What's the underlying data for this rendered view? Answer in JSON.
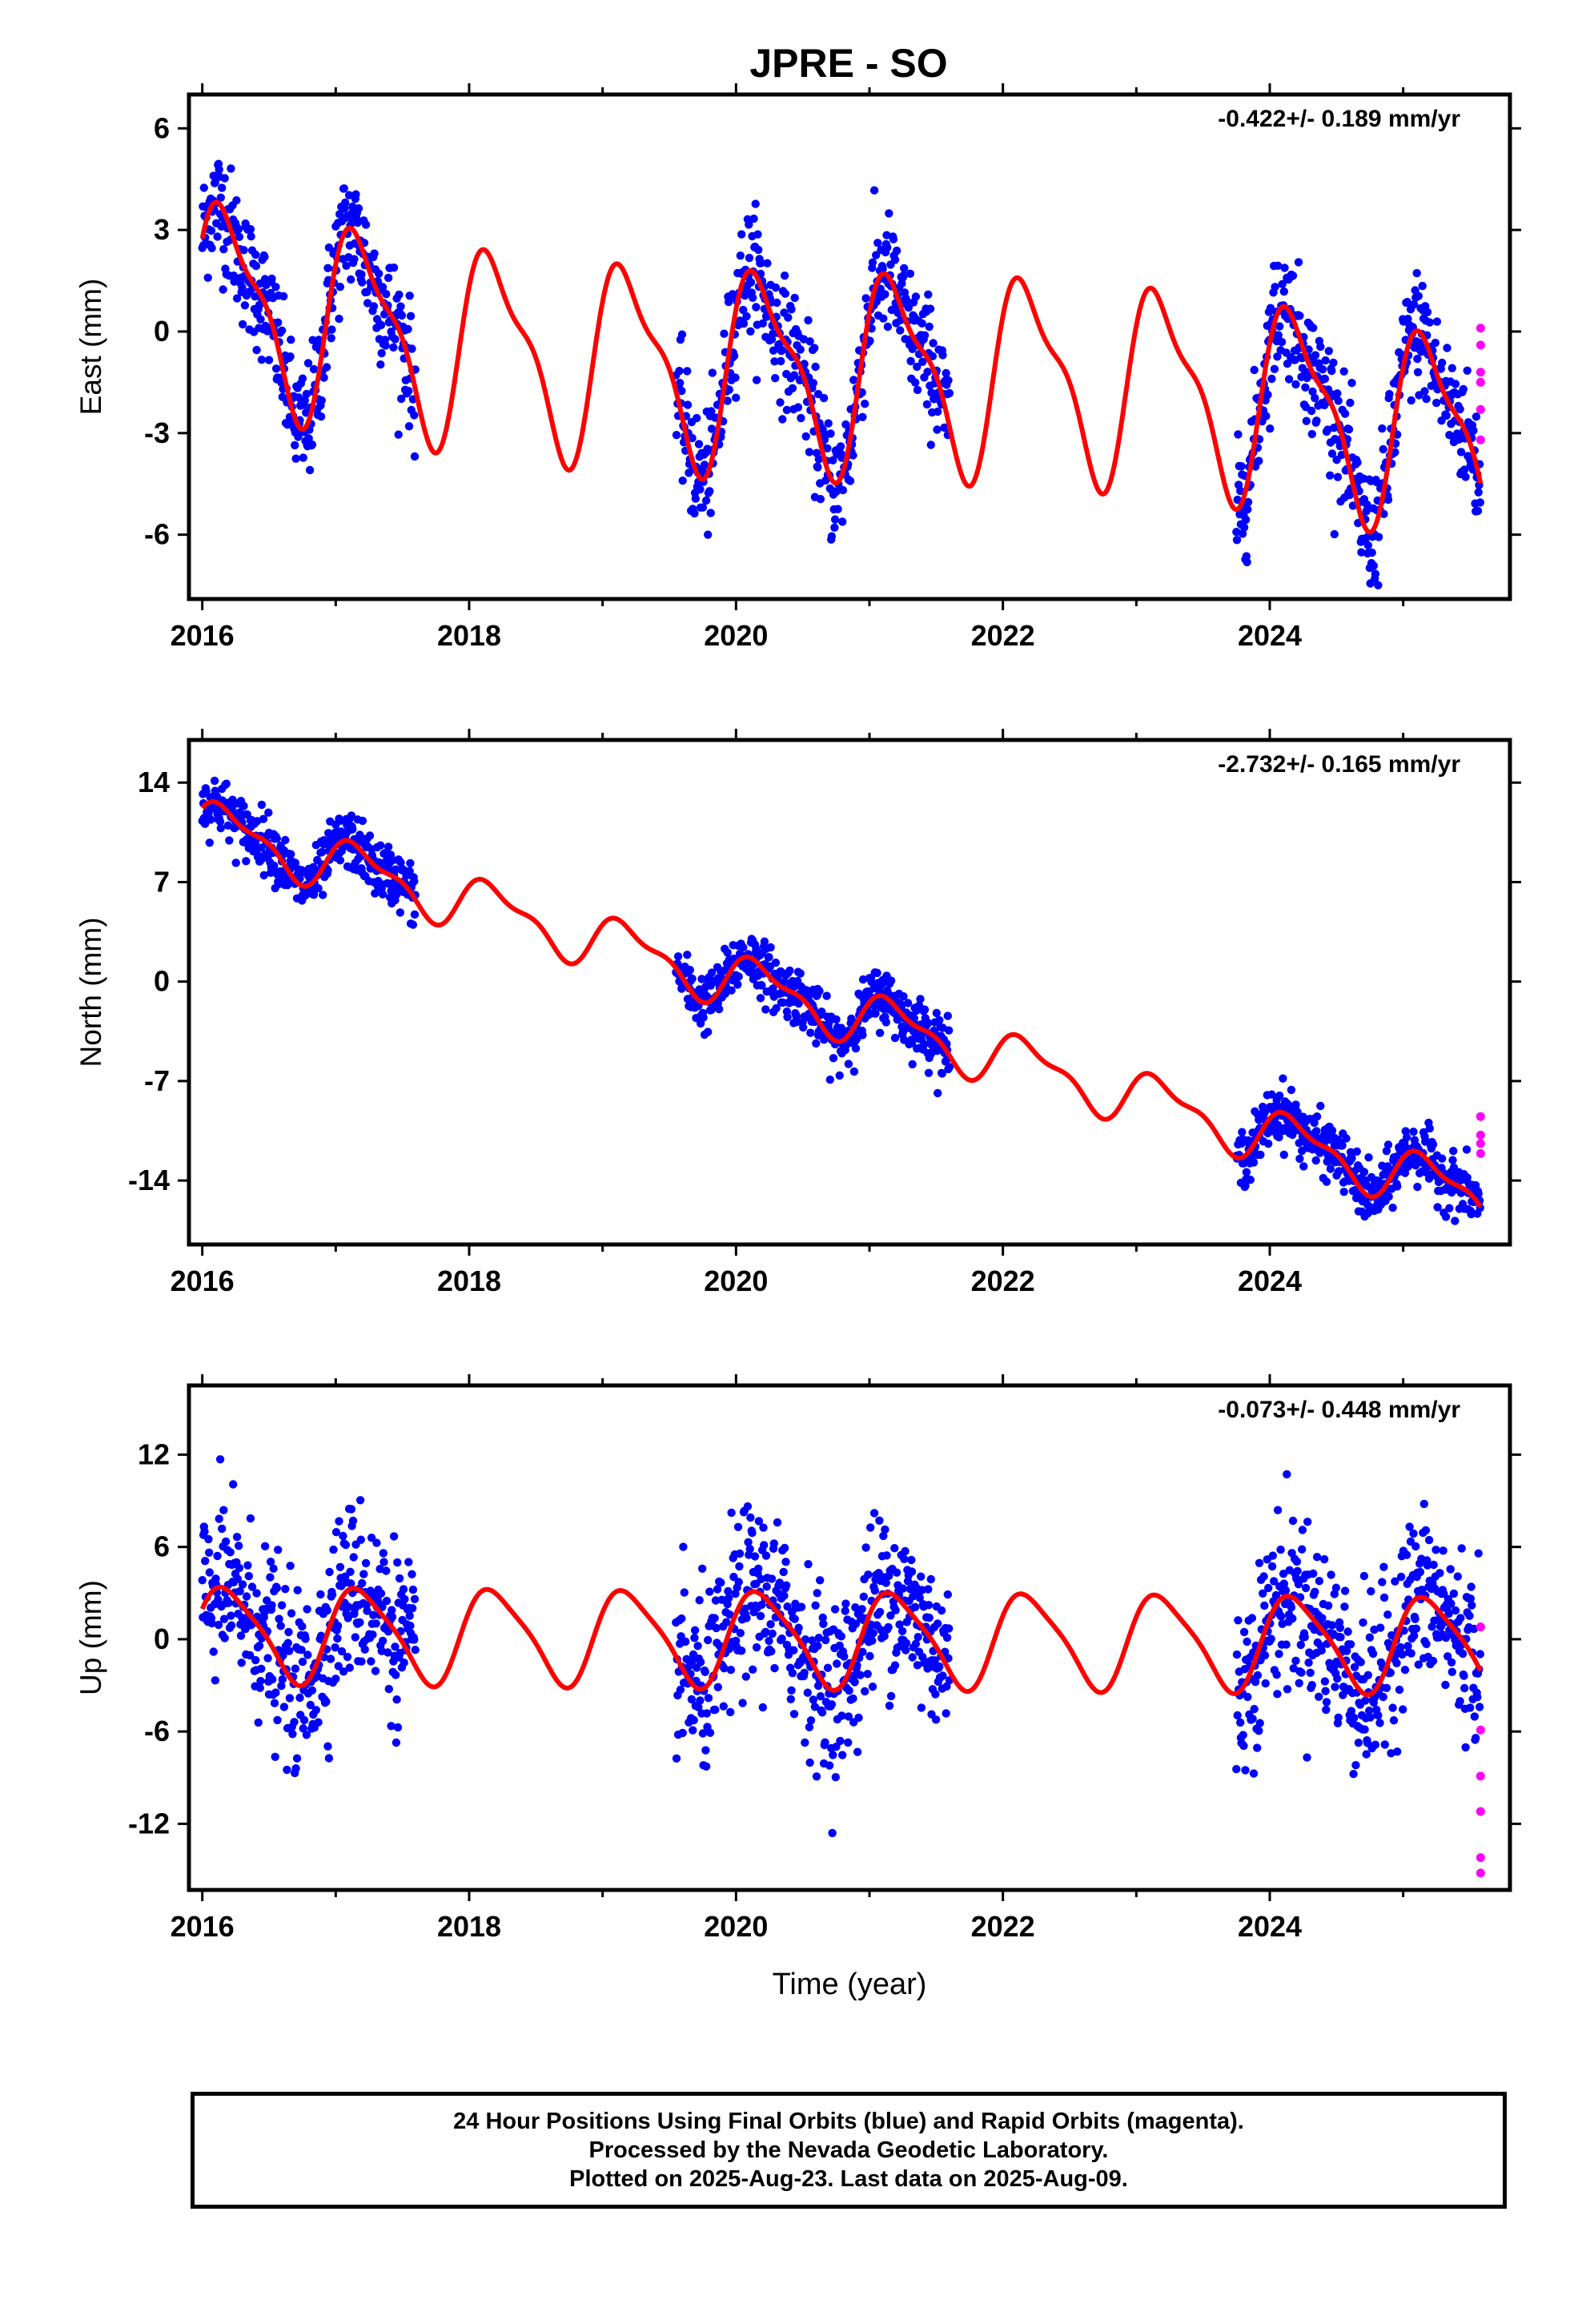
{
  "title": "JPRE - SO",
  "colors": {
    "final": "#0000ff",
    "rapid": "#ff00ff",
    "model": "#ff0000",
    "axis": "#000000"
  },
  "chart_data": [
    {
      "type": "scatter",
      "name": "east",
      "ylabel": "East (mm)",
      "xlabel": "",
      "rate": "-0.422+/- 0.189 mm/yr",
      "xlim": [
        2015.9,
        2025.8
      ],
      "ylim": [
        -7.9,
        7.0
      ],
      "yticks": [
        6,
        3,
        0,
        -3,
        -6
      ],
      "ytick_labels": [
        "6",
        "3",
        "0",
        "-3",
        "-6"
      ],
      "xticks": [
        2016,
        2018,
        2020,
        2022,
        2024
      ],
      "xtick_labels": [
        "2016",
        "2018",
        "2020",
        "2022",
        "2024"
      ],
      "data_spans": [
        [
          2016.0,
          2017.6
        ],
        [
          2019.55,
          2021.6
        ],
        [
          2023.75,
          2025.58
        ]
      ],
      "model": {
        "offset": 0.9,
        "trend": -0.422,
        "amp_annual": 2.7,
        "amp_semi": 0.9,
        "amp_drift": 0.5
      },
      "scatter_sd": 0.9,
      "rapid_points": [
        [
          2025.58,
          0.1
        ],
        [
          2025.58,
          -0.4
        ],
        [
          2025.58,
          -1.2
        ],
        [
          2025.58,
          -1.5
        ],
        [
          2025.58,
          -2.3
        ],
        [
          2025.58,
          -3.2
        ]
      ]
    },
    {
      "type": "scatter",
      "name": "north",
      "ylabel": "North (mm)",
      "xlabel": "",
      "rate": "-2.732+/- 0.165 mm/yr",
      "xlim": [
        2015.9,
        2025.8
      ],
      "ylim": [
        -18.5,
        17.0
      ],
      "yticks": [
        14,
        7,
        0,
        -7,
        -14
      ],
      "ytick_labels": [
        "14",
        "7",
        "0",
        "-7",
        "-14"
      ],
      "xticks": [
        2016,
        2018,
        2020,
        2022,
        2024
      ],
      "xtick_labels": [
        "2016",
        "2018",
        "2020",
        "2022",
        "2024"
      ],
      "data_spans": [
        [
          2016.0,
          2017.6
        ],
        [
          2019.55,
          2021.6
        ],
        [
          2023.75,
          2025.58
        ]
      ],
      "model": {
        "offset": 11.0,
        "trend": -2.732,
        "amp_annual": 1.7,
        "amp_semi": 0.7,
        "amp_drift": 0.0
      },
      "scatter_sd": 1.0,
      "rapid_points": [
        [
          2025.58,
          -9.5
        ],
        [
          2025.58,
          -10.8
        ],
        [
          2025.58,
          -11.4
        ],
        [
          2025.58,
          -12.1
        ]
      ]
    },
    {
      "type": "scatter",
      "name": "up",
      "ylabel": "Up (mm)",
      "xlabel": "Time (year)",
      "rate": "-0.073+/- 0.448 mm/yr",
      "xlim": [
        2015.9,
        2025.8
      ],
      "ylim": [
        -16.3,
        16.5
      ],
      "yticks": [
        12,
        6,
        0,
        -6,
        -12
      ],
      "ytick_labels": [
        "12",
        "6",
        "0",
        "-6",
        "-12"
      ],
      "xticks": [
        2016,
        2018,
        2020,
        2022,
        2024
      ],
      "xtick_labels": [
        "2016",
        "2018",
        "2020",
        "2022",
        "2024"
      ],
      "data_spans": [
        [
          2016.0,
          2017.6
        ],
        [
          2019.55,
          2021.6
        ],
        [
          2023.75,
          2025.58
        ]
      ],
      "model": {
        "offset": 0.4,
        "trend": -0.073,
        "amp_annual": 3.0,
        "amp_semi": 0.6,
        "amp_drift": 0.0
      },
      "scatter_sd": 2.8,
      "rapid_points": [
        [
          2025.58,
          0.8
        ],
        [
          2025.58,
          -5.9
        ],
        [
          2025.58,
          -8.9
        ],
        [
          2025.58,
          -11.2
        ],
        [
          2025.58,
          -14.2
        ],
        [
          2025.58,
          -15.2
        ]
      ]
    }
  ],
  "footer": {
    "line1": "24 Hour Positions Using Final Orbits (blue) and Rapid Orbits (magenta).",
    "line2": "Processed by the Nevada Geodetic Laboratory.",
    "line3": "Plotted on 2025-Aug-23. Last data on 2025-Aug-09."
  }
}
